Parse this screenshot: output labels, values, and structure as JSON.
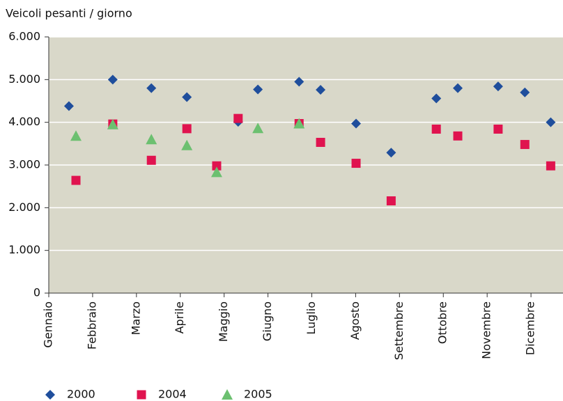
{
  "chart_data": {
    "type": "scatter",
    "y_label": "Veicoli pesanti / giorno",
    "xlim": [
      0,
      11.73
    ],
    "xticks": [
      {
        "value": 0,
        "label": "Gennaio"
      },
      {
        "value": 1,
        "label": "Febbraio"
      },
      {
        "value": 2,
        "label": "Marzo"
      },
      {
        "value": 3,
        "label": "Aprile"
      },
      {
        "value": 4,
        "label": "Maggio"
      },
      {
        "value": 5,
        "label": "Giugno"
      },
      {
        "value": 6,
        "label": "Luglio"
      },
      {
        "value": 7,
        "label": "Agosto"
      },
      {
        "value": 8,
        "label": "Settembre"
      },
      {
        "value": 9,
        "label": "Ottobre"
      },
      {
        "value": 10,
        "label": "Novembre"
      },
      {
        "value": 11,
        "label": "Dicembre"
      }
    ],
    "ylim": [
      0,
      6000
    ],
    "yticks": [
      0,
      {
        "value": 1000,
        "label": "1.000"
      },
      {
        "value": 2000,
        "label": "2.000"
      },
      {
        "value": 3000,
        "label": "3.000"
      },
      {
        "value": 4000,
        "label": "4.000"
      },
      {
        "value": 5000,
        "label": "5.000"
      },
      {
        "value": 6000,
        "label": "6.000"
      }
    ],
    "grid": true,
    "background": "#d9d8c9",
    "series": [
      {
        "name": "2000",
        "color": "#1f4e9c",
        "marker": "diamond",
        "x": [
          0.46,
          1.46,
          2.34,
          3.15,
          4.32,
          4.77,
          5.71,
          6.2,
          7.01,
          7.81,
          8.84,
          9.33,
          10.25,
          10.86,
          11.45
        ],
        "values": [
          4380,
          5000,
          4800,
          4590,
          4010,
          4770,
          4950,
          4760,
          3970,
          3290,
          4560,
          4800,
          4840,
          4700,
          4000
        ]
      },
      {
        "name": "2004",
        "color": "#e0134f",
        "marker": "square",
        "x": [
          0.62,
          1.46,
          2.34,
          3.15,
          3.83,
          4.32,
          5.71,
          6.2,
          7.01,
          7.81,
          8.84,
          9.33,
          10.25,
          10.86,
          11.45
        ],
        "values": [
          2640,
          3960,
          3110,
          3850,
          2980,
          4090,
          3970,
          3530,
          3040,
          2160,
          3840,
          3680,
          3840,
          3480,
          2980
        ]
      },
      {
        "name": "2005",
        "color": "#6cc070",
        "marker": "triangle",
        "x": [
          0.62,
          1.46,
          2.34,
          3.15,
          3.83,
          4.77,
          5.71
        ],
        "values": [
          3680,
          3950,
          3600,
          3460,
          2830,
          3860,
          3970
        ]
      }
    ]
  }
}
